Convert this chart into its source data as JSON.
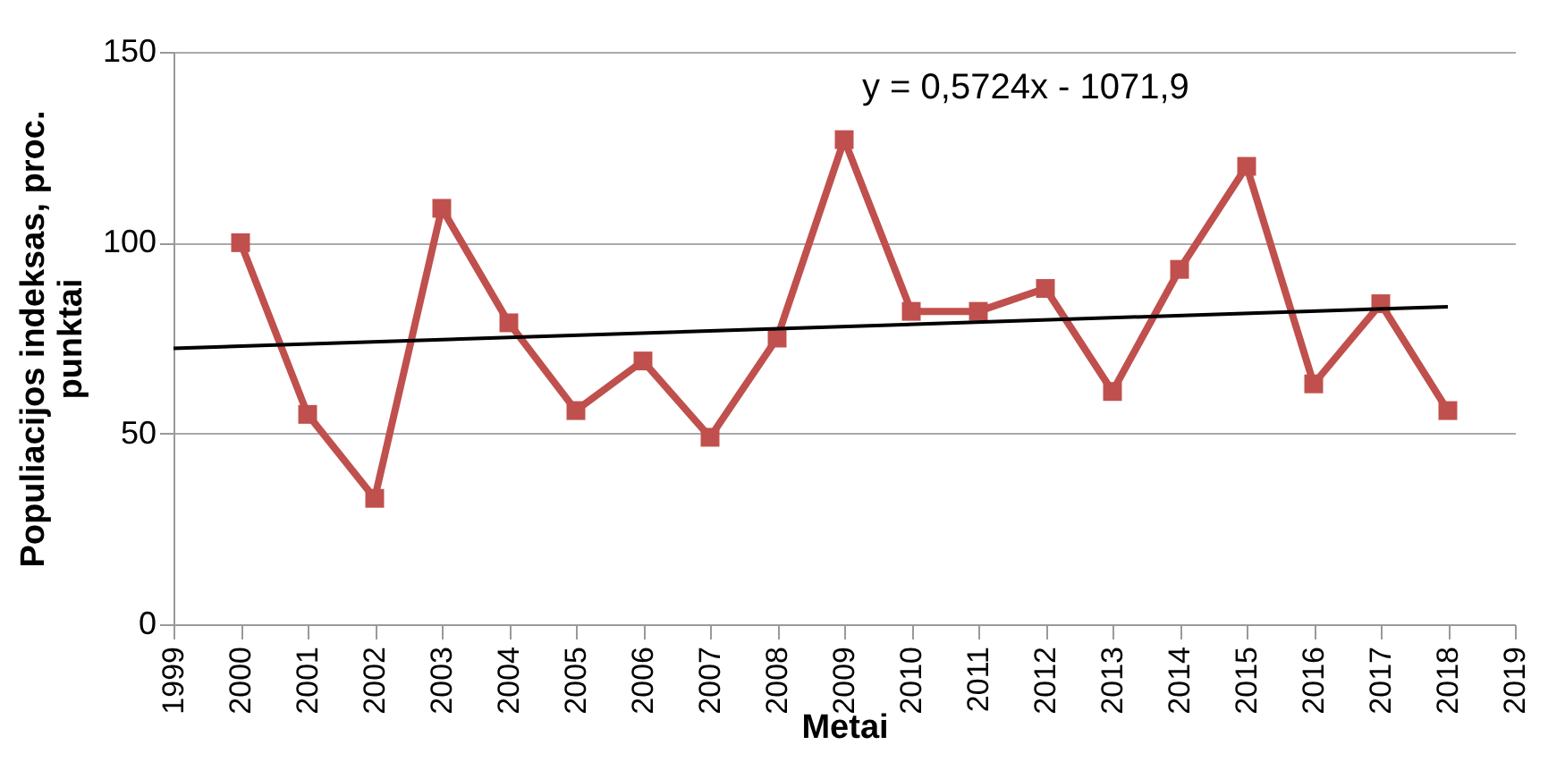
{
  "chart_data": {
    "type": "line",
    "xlabel": "Metai",
    "ylabel": "Populiacijos indeksas, proc. punktai",
    "x": [
      2000,
      2001,
      2002,
      2003,
      2004,
      2005,
      2006,
      2007,
      2008,
      2009,
      2010,
      2011,
      2012,
      2013,
      2014,
      2015,
      2016,
      2017,
      2018
    ],
    "series": [
      {
        "color": "#c0504d",
        "marker": "square",
        "values": [
          100,
          55,
          33,
          109,
          79,
          56,
          69,
          49,
          75,
          127,
          82,
          82,
          88,
          61,
          93,
          120,
          63,
          84,
          56
        ]
      },
      {
        "type": "line",
        "color": "#000000",
        "marker": "none",
        "x": [
          1999,
          2018
        ],
        "values": [
          72.3,
          83.2
        ]
      }
    ],
    "annotations": [
      "y = 0,5724x - 1071,9"
    ],
    "xlim": [
      1999,
      2019
    ],
    "xticks": [
      1999,
      2000,
      2001,
      2002,
      2003,
      2004,
      2005,
      2006,
      2007,
      2008,
      2009,
      2010,
      2011,
      2012,
      2013,
      2014,
      2015,
      2016,
      2017,
      2018,
      2019
    ],
    "ylim": [
      0,
      150
    ],
    "yticks": [
      0,
      50,
      100,
      150
    ],
    "grid": "y"
  }
}
